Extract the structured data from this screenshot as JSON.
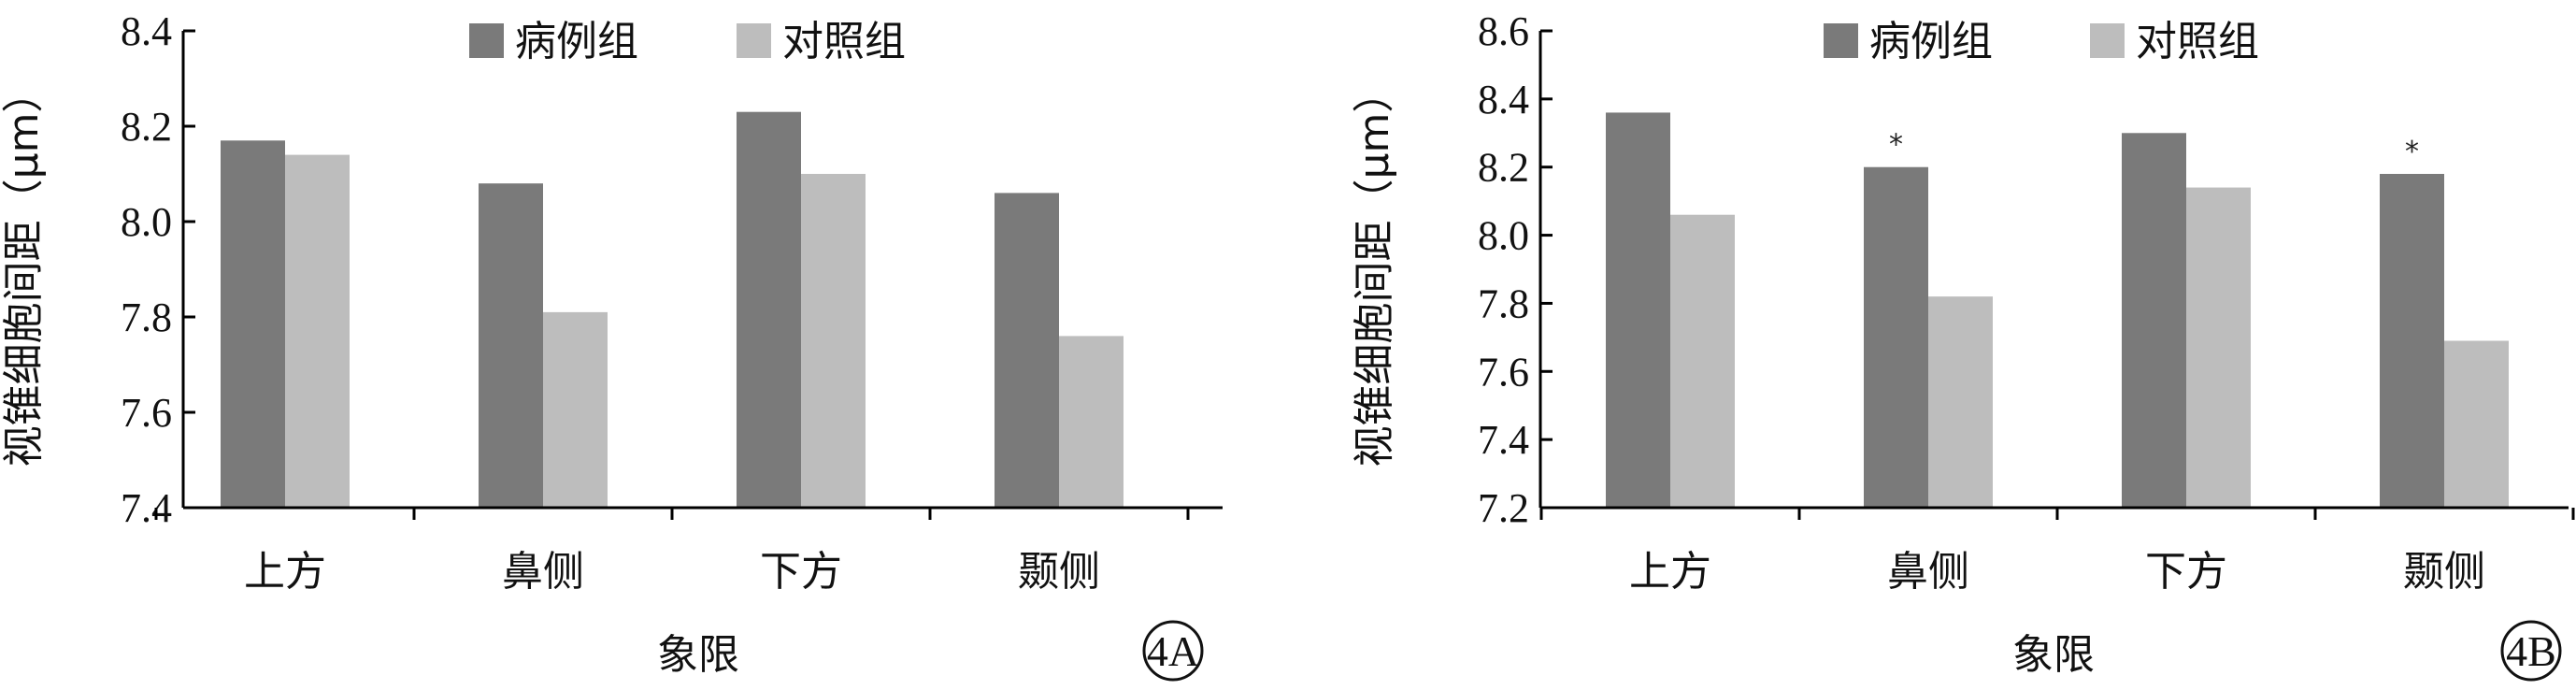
{
  "chart_data": [
    {
      "type": "bar",
      "title": "",
      "xlabel": "象限",
      "ylabel": "视锥细胞间距（μm）",
      "ylim": [
        7.4,
        8.4
      ],
      "yticks": [
        "7.4",
        "7.6",
        "7.8",
        "8.0",
        "8.2",
        "8.4"
      ],
      "categories": [
        "上方",
        "鼻侧",
        "下方",
        "颞侧"
      ],
      "series": [
        {
          "name": "病例组",
          "color": "#7a7a7a",
          "values": [
            8.17,
            8.08,
            8.23,
            8.06
          ]
        },
        {
          "name": "对照组",
          "color": "#bdbdbd",
          "values": [
            8.14,
            7.81,
            8.1,
            7.76
          ]
        }
      ],
      "significance": [
        null,
        null,
        null,
        null
      ],
      "panel_label": "4A",
      "legend": "top-center",
      "grid": false
    },
    {
      "type": "bar",
      "title": "",
      "xlabel": "象限",
      "ylabel": "视锥细胞间距（μm）",
      "ylim": [
        7.2,
        8.6
      ],
      "yticks": [
        "7.2",
        "7.4",
        "7.6",
        "7.8",
        "8.0",
        "8.2",
        "8.4",
        "8.6"
      ],
      "categories": [
        "上方",
        "鼻侧",
        "下方",
        "颞侧"
      ],
      "series": [
        {
          "name": "病例组",
          "color": "#7a7a7a",
          "values": [
            8.36,
            8.2,
            8.3,
            8.18
          ]
        },
        {
          "name": "对照组",
          "color": "#bdbdbd",
          "values": [
            8.06,
            7.82,
            8.14,
            7.69
          ]
        }
      ],
      "significance": [
        null,
        "*",
        null,
        "*"
      ],
      "panel_label": "4B",
      "legend": "top-center",
      "grid": false
    }
  ]
}
